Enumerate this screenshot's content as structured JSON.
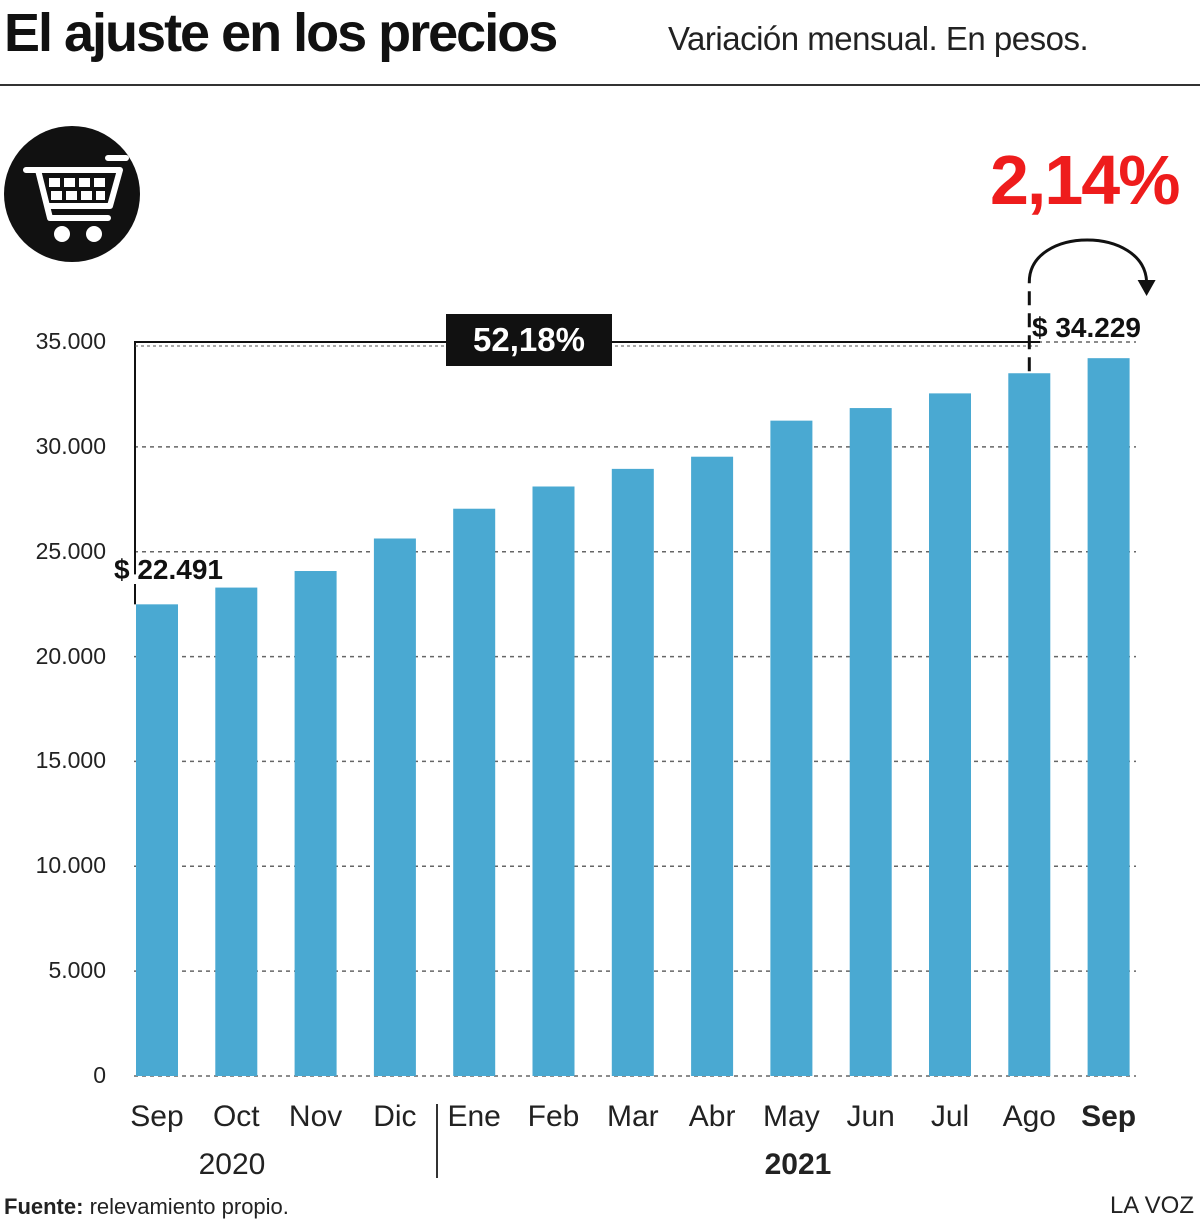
{
  "header": {
    "title": "El ajuste en los precios",
    "subtitle": "Variación mensual. En pesos."
  },
  "highlight": {
    "monthly_change": "2,14%",
    "total_change": "52,18%",
    "start_label": "$ 22.491",
    "end_label": "$ 34.229"
  },
  "footer": {
    "source_label": "Fuente:",
    "source_text": " relevamiento propio.",
    "brand": "LA VOZ"
  },
  "colors": {
    "bar": "#4aa9d2",
    "accent": "#ee1c1c",
    "dark": "#111111"
  },
  "icon": "shopping-cart-icon",
  "chart_data": {
    "type": "bar",
    "categories": [
      "Sep",
      "Oct",
      "Nov",
      "Dic",
      "Ene",
      "Feb",
      "Mar",
      "Abr",
      "May",
      "Jun",
      "Jul",
      "Ago",
      "Sep"
    ],
    "values": [
      22491,
      23290,
      24080,
      25630,
      27050,
      28110,
      28950,
      29530,
      31250,
      31850,
      32550,
      33510,
      34229
    ],
    "year_groups": [
      {
        "label": "2020",
        "from": 0,
        "to": 3
      },
      {
        "label": "2021",
        "from": 4,
        "to": 12
      }
    ],
    "y_ticks": [
      "0",
      "5.000",
      "10.000",
      "15.000",
      "20.000",
      "25.000",
      "30.000",
      "35.000"
    ],
    "ylim": [
      0,
      35000
    ],
    "grid": true,
    "legend": "none"
  }
}
